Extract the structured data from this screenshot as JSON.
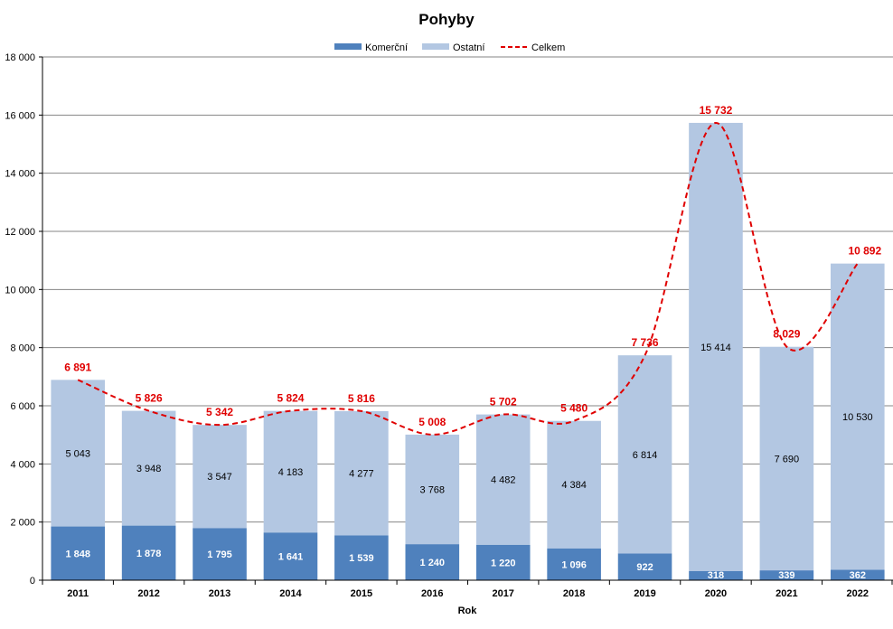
{
  "chart_data": {
    "type": "bar",
    "stacked": true,
    "title": "Pohyby",
    "xlabel": "Rok",
    "ylabel": "",
    "ylim": [
      0,
      18000
    ],
    "yticks": [
      0,
      2000,
      4000,
      6000,
      8000,
      10000,
      12000,
      14000,
      16000,
      18000
    ],
    "ytick_labels": [
      "0",
      "2 000",
      "4 000",
      "6 000",
      "8 000",
      "10 000",
      "12 000",
      "14 000",
      "16 000",
      "18 000"
    ],
    "grid": true,
    "legend_position": "top-center",
    "categories": [
      "2011",
      "2012",
      "2013",
      "2014",
      "2015",
      "2016",
      "2017",
      "2018",
      "2019",
      "2020",
      "2021",
      "2022"
    ],
    "series": [
      {
        "name": "Komerční",
        "kind": "bar",
        "color": "#4f81bd",
        "values": [
          1848,
          1878,
          1795,
          1641,
          1539,
          1240,
          1220,
          1096,
          922,
          318,
          339,
          362
        ],
        "labels": [
          "1 848",
          "1 878",
          "1 795",
          "1 641",
          "1 539",
          "1 240",
          "1 220",
          "1 096",
          "922",
          "318",
          "339",
          "362"
        ]
      },
      {
        "name": "Ostatní",
        "kind": "bar",
        "color": "#b3c7e2",
        "values": [
          5043,
          3948,
          3547,
          4183,
          4277,
          3768,
          4482,
          4384,
          6814,
          15414,
          7690,
          10530
        ],
        "labels": [
          "5 043",
          "3 948",
          "3 547",
          "4 183",
          "4 277",
          "3 768",
          "4 482",
          "4 384",
          "6 814",
          "15 414",
          "7 690",
          "10 530"
        ]
      },
      {
        "name": "Celkem",
        "kind": "line",
        "style": "dashed",
        "color": "#e00000",
        "values": [
          6891,
          5826,
          5342,
          5824,
          5816,
          5008,
          5702,
          5480,
          7736,
          15732,
          8029,
          10892
        ],
        "labels": [
          "6 891",
          "5 826",
          "5 342",
          "5 824",
          "5 816",
          "5 008",
          "5 702",
          "5 480",
          "7 736",
          "15 732",
          "8 029",
          "10 892"
        ]
      }
    ]
  }
}
